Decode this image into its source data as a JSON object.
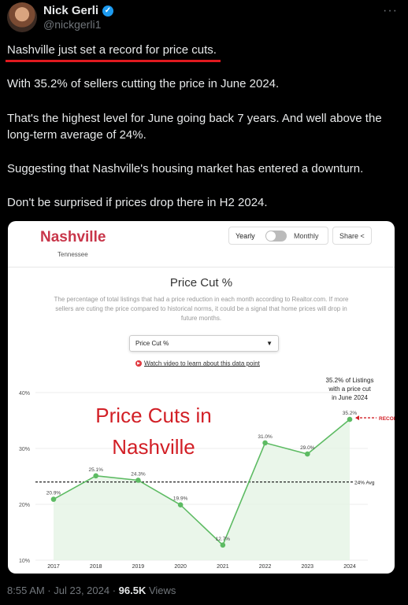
{
  "author": {
    "name": "Nick Gerli",
    "handle": "@nickgerli1"
  },
  "tweet": {
    "headline": "Nashville just set a record for price cuts.",
    "paragraphs": [
      "With 35.2% of sellers cutting the price in June 2024.",
      "That's the highest level for June going back 7 years. And well above the long-term average of 24%.",
      "Suggesting that Nashville's housing market has entered a downturn.",
      "Don't be surprised if prices drop there in H2 2024."
    ]
  },
  "card": {
    "city": "Nashville",
    "state": "Tennessee",
    "toggle": {
      "left": "Yearly",
      "right": "Monthly"
    },
    "share_label": "Share",
    "chart_title": "Price Cut %",
    "description": "The percentage of total listings that had a price reduction in each month according to Realtor.com. If more sellers are cuting the price compared to historical norms, it could be a signal that home prices will drop in future months.",
    "select_value": "Price Cut %",
    "video_link": "Watch video to learn about this data point"
  },
  "chart_data": {
    "type": "line",
    "categories": [
      "2017",
      "2018",
      "2019",
      "2020",
      "2021",
      "2022",
      "2023",
      "2024"
    ],
    "series": [
      {
        "values": [
          20.9,
          25.1,
          24.3,
          19.9,
          12.7,
          31.0,
          29.0,
          35.2
        ],
        "color": "#5dbb63"
      }
    ],
    "data_labels": [
      "20.9%",
      "25.1%",
      "24.3%",
      "19.9%",
      "12.7%",
      "31.0%",
      "29.0%",
      "35.2%"
    ],
    "y_ticks": [
      10,
      20,
      30,
      40
    ],
    "y_tick_labels": [
      "10%",
      "20%",
      "30%",
      "40%"
    ],
    "ylim": [
      10,
      40
    ],
    "average": {
      "value": 24,
      "label": "24% Avg"
    },
    "annotations": {
      "overlay_line1": "Price Cuts in",
      "overlay_line2": "Nashville",
      "callout_lines": [
        "35.2% of Listings",
        "with a price cut",
        "in June 2024"
      ],
      "record_label": "RECORD"
    },
    "colors": {
      "line": "#5dbb63",
      "fill": "#e6f5e6",
      "overlay": "#d21f26",
      "record": "#d21f26"
    }
  },
  "footer": {
    "time": "8:55 AM · Jul 23, 2024 · ",
    "views_count": "96.5K",
    "views_label": " Views"
  }
}
